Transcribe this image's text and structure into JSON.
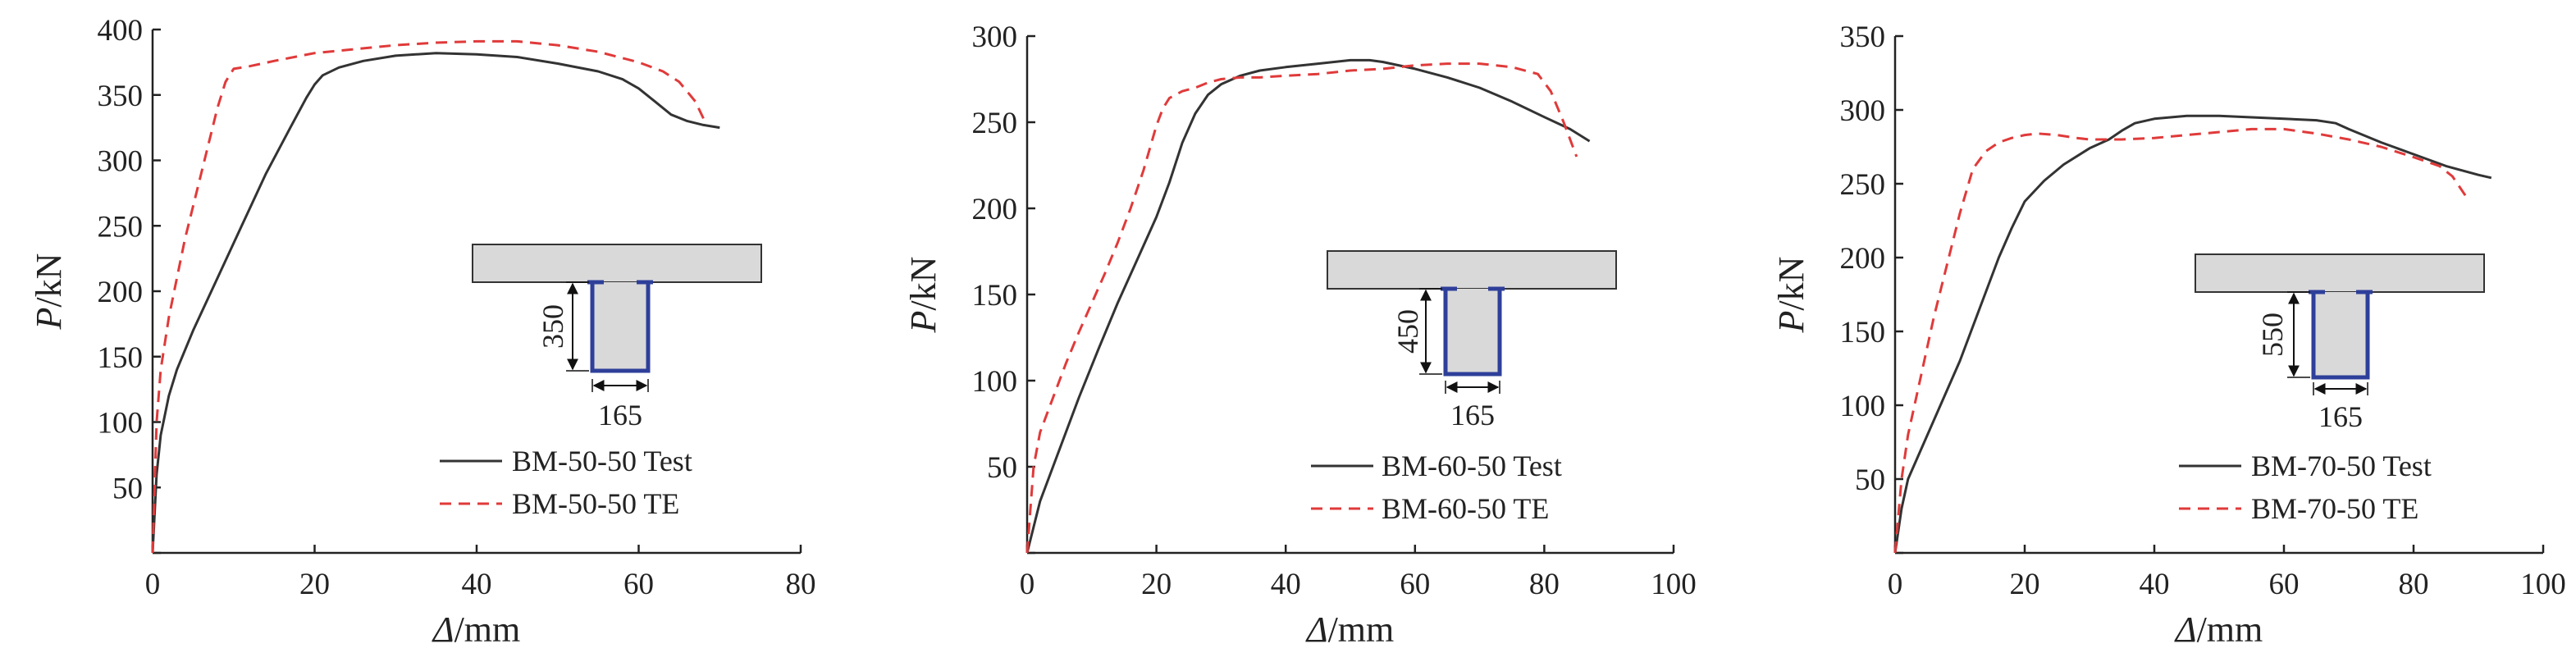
{
  "chart_data": [
    {
      "type": "line",
      "title": "",
      "xlabel_var": "Δ",
      "xlabel_unit": "/mm",
      "ylabel_var": "P",
      "ylabel_unit": "/kN",
      "xlim": [
        0,
        80
      ],
      "ylim": [
        0,
        400
      ],
      "xticks": [
        "0",
        "20",
        "40",
        "60",
        "80"
      ],
      "yticks": [
        "",
        "50",
        "100",
        "150",
        "200",
        "250",
        "300",
        "350",
        "400"
      ],
      "grid": false,
      "legend_position": "bottom-right",
      "section": {
        "depth": "350",
        "width": "165"
      },
      "series": [
        {
          "name": "BM-50-50 Test",
          "color": "#333333",
          "dash": "solid",
          "x": [
            0,
            0.5,
            1,
            2,
            3,
            5,
            8,
            11,
            14,
            17,
            19,
            20,
            21,
            23,
            26,
            30,
            35,
            40,
            45,
            50,
            55,
            58,
            60,
            62,
            64,
            66,
            68,
            70
          ],
          "y": [
            0,
            60,
            90,
            120,
            140,
            170,
            210,
            250,
            290,
            325,
            348,
            358,
            365,
            371,
            376,
            380,
            382,
            381,
            379,
            374,
            368,
            362,
            355,
            345,
            335,
            330,
            327,
            325
          ]
        },
        {
          "name": "BM-50-50 TE",
          "color": "#e03a3a",
          "dash": "dashed",
          "x": [
            0,
            0.5,
            1,
            2,
            3,
            4,
            6,
            8,
            9,
            10,
            12,
            15,
            20,
            25,
            30,
            35,
            40,
            45,
            50,
            55,
            60,
            63,
            65,
            67,
            68
          ],
          "y": [
            0,
            100,
            140,
            180,
            210,
            240,
            290,
            340,
            360,
            370,
            372,
            376,
            382,
            385,
            388,
            390,
            391,
            391,
            388,
            383,
            375,
            368,
            360,
            345,
            332
          ]
        }
      ]
    },
    {
      "type": "line",
      "title": "",
      "xlabel_var": "Δ",
      "xlabel_unit": "/mm",
      "ylabel_var": "P",
      "ylabel_unit": "/kN",
      "xlim": [
        0,
        100
      ],
      "ylim": [
        0,
        300
      ],
      "xticks": [
        "0",
        "20",
        "40",
        "60",
        "80",
        "100"
      ],
      "yticks": [
        "",
        "50",
        "100",
        "150",
        "200",
        "250",
        "300"
      ],
      "grid": false,
      "legend_position": "bottom-right",
      "section": {
        "depth": "450",
        "width": "165"
      },
      "series": [
        {
          "name": "BM-60-50 Test",
          "color": "#333333",
          "dash": "solid",
          "x": [
            0,
            2,
            5,
            8,
            11,
            14,
            17,
            20,
            22,
            24,
            26,
            28,
            30,
            33,
            36,
            40,
            45,
            50,
            53,
            55,
            60,
            65,
            70,
            75,
            80,
            84,
            87
          ],
          "y": [
            0,
            30,
            60,
            90,
            118,
            145,
            170,
            195,
            215,
            238,
            255,
            266,
            272,
            277,
            280,
            282,
            284,
            286,
            286,
            285,
            281,
            276,
            270,
            262,
            253,
            246,
            239
          ]
        },
        {
          "name": "BM-60-50 TE",
          "color": "#e03a3a",
          "dash": "dashed",
          "x": [
            0,
            1,
            2,
            4,
            6,
            8,
            10,
            12,
            14,
            16,
            18,
            20,
            21,
            22,
            24,
            26,
            28,
            30,
            33,
            36,
            40,
            45,
            50,
            55,
            60,
            65,
            70,
            75,
            79,
            81,
            83,
            85
          ],
          "y": [
            0,
            50,
            70,
            90,
            110,
            128,
            145,
            162,
            180,
            200,
            222,
            248,
            258,
            264,
            268,
            270,
            273,
            275,
            276,
            276,
            277,
            278,
            280,
            281,
            283,
            284,
            284,
            282,
            278,
            268,
            250,
            230
          ]
        }
      ]
    },
    {
      "type": "line",
      "title": "",
      "xlabel_var": "Δ",
      "xlabel_unit": "/mm",
      "ylabel_var": "P",
      "ylabel_unit": "/kN",
      "xlim": [
        0,
        100
      ],
      "ylim": [
        0,
        350
      ],
      "xticks": [
        "0",
        "20",
        "40",
        "60",
        "80",
        "100"
      ],
      "yticks": [
        "",
        "50",
        "100",
        "150",
        "200",
        "250",
        "300",
        "350"
      ],
      "grid": false,
      "legend_position": "bottom-right",
      "section": {
        "depth": "550",
        "width": "165"
      },
      "series": [
        {
          "name": "BM-70-50 Test",
          "color": "#333333",
          "dash": "solid",
          "x": [
            0,
            1,
            2,
            4,
            7,
            10,
            13,
            16,
            18,
            20,
            23,
            26,
            30,
            33,
            35,
            37,
            40,
            45,
            50,
            55,
            60,
            65,
            68,
            70,
            75,
            80,
            85,
            90,
            92
          ],
          "y": [
            0,
            30,
            50,
            70,
            100,
            130,
            165,
            200,
            220,
            238,
            252,
            263,
            274,
            280,
            286,
            291,
            294,
            296,
            296,
            295,
            294,
            293,
            291,
            287,
            278,
            270,
            262,
            256,
            254
          ]
        },
        {
          "name": "BM-70-50 TE",
          "color": "#e03a3a",
          "dash": "dashed",
          "x": [
            0,
            1,
            2,
            4,
            6,
            8,
            10,
            12,
            14,
            16,
            18,
            20,
            22,
            25,
            28,
            30,
            35,
            40,
            45,
            50,
            55,
            60,
            65,
            70,
            75,
            80,
            84,
            86,
            88
          ],
          "y": [
            0,
            50,
            80,
            120,
            160,
            195,
            230,
            260,
            272,
            278,
            281,
            283,
            284,
            283,
            281,
            280,
            280,
            281,
            283,
            285,
            287,
            287,
            284,
            280,
            275,
            268,
            262,
            255,
            242
          ]
        }
      ]
    }
  ]
}
